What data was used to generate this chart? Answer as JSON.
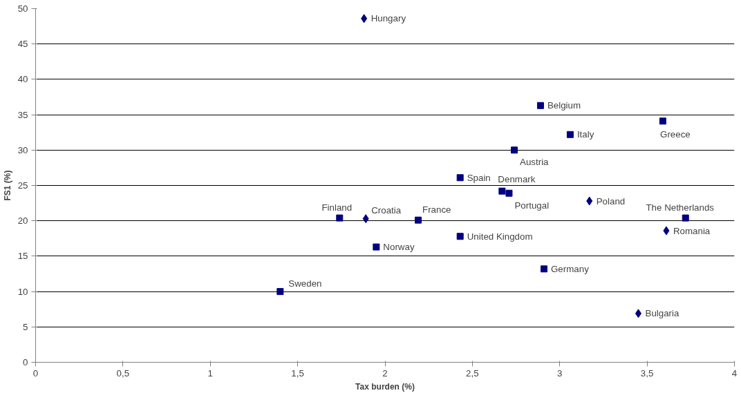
{
  "chart_data": {
    "type": "scatter",
    "xlabel": "Tax burden (%)",
    "ylabel": "FS1 (%)",
    "xlim": [
      0,
      4
    ],
    "ylim": [
      0,
      50
    ],
    "xticks": [
      0,
      {
        "value": 0.5,
        "label": "0,5"
      },
      1,
      {
        "value": 1.5,
        "label": "1,5"
      },
      2,
      {
        "value": 2.5,
        "label": "2,5"
      },
      3,
      {
        "value": 3.5,
        "label": "3,5"
      },
      4
    ],
    "yticks": [
      0,
      5,
      10,
      15,
      20,
      25,
      30,
      35,
      40,
      45,
      50
    ],
    "grid": "y",
    "series": [
      {
        "color": "#000080",
        "marker": "square",
        "x": [
          2.89,
          3.59,
          3.06,
          2.74,
          2.43,
          2.67,
          2.71,
          3.72,
          1.74,
          2.19,
          2.43,
          1.95,
          2.91,
          1.4
        ],
        "values": [
          36.3,
          34.1,
          32.2,
          30.0,
          26.1,
          24.2,
          23.9,
          20.4,
          20.4,
          20.1,
          17.8,
          16.3,
          13.2,
          10.0
        ]
      },
      {
        "color": "#000080",
        "marker": "diamond",
        "x": [
          1.88,
          3.17,
          1.89,
          3.61,
          3.45
        ],
        "values": [
          48.6,
          22.8,
          20.3,
          18.6,
          6.9
        ]
      }
    ],
    "annotations": [
      {
        "text": "Hungary",
        "x": 1.88,
        "y": 48.6
      },
      {
        "text": "Belgium",
        "x": 2.89,
        "y": 36.3
      },
      {
        "text": "Greece",
        "x": 3.59,
        "y": 34.1
      },
      {
        "text": "Italy",
        "x": 3.06,
        "y": 32.2
      },
      {
        "text": "Austria",
        "x": 2.74,
        "y": 30.0
      },
      {
        "text": "Spain",
        "x": 2.43,
        "y": 26.1
      },
      {
        "text": "Denmark",
        "x": 2.67,
        "y": 24.2
      },
      {
        "text": "Portugal",
        "x": 2.71,
        "y": 23.9
      },
      {
        "text": "Poland",
        "x": 3.17,
        "y": 22.8
      },
      {
        "text": "The Netherlands",
        "x": 3.72,
        "y": 20.4
      },
      {
        "text": "Finland",
        "x": 1.74,
        "y": 20.4
      },
      {
        "text": "Croatia",
        "x": 1.89,
        "y": 20.3
      },
      {
        "text": "France",
        "x": 2.19,
        "y": 20.1
      },
      {
        "text": "Romania",
        "x": 3.61,
        "y": 18.6
      },
      {
        "text": "United Kingdom",
        "x": 2.43,
        "y": 17.8
      },
      {
        "text": "Norway",
        "x": 1.95,
        "y": 16.3
      },
      {
        "text": "Germany",
        "x": 2.91,
        "y": 13.2
      },
      {
        "text": "Sweden",
        "x": 1.4,
        "y": 10.0
      },
      {
        "text": "Bulgaria",
        "x": 3.45,
        "y": 6.9
      }
    ]
  }
}
